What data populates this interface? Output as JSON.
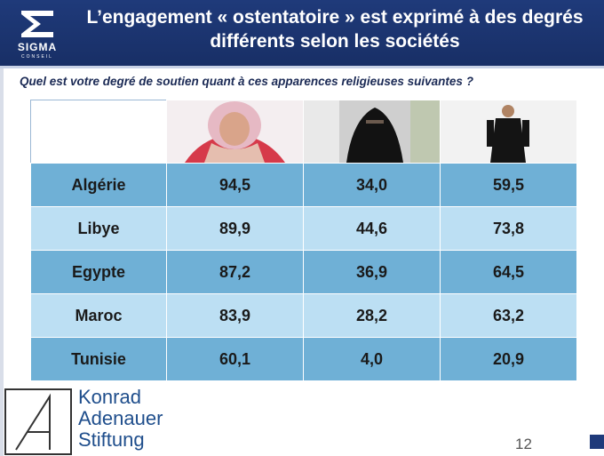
{
  "header": {
    "title": "L’engagement « ostentatoire » est exprimé à des degrés différents selon les sociétés",
    "logo_word": "SIGMA",
    "logo_sub": "CONSEIL",
    "colors": {
      "header_bg": "#1f3a7a",
      "row_dark": "#6fb0d6",
      "row_light": "#bcdff3"
    }
  },
  "question": "Quel est votre degré de soutien quant à ces apparences religieuses suivantes ?",
  "table": {
    "image_icons": [
      "hijab-woman-photo-icon",
      "niqab-woman-photo-icon",
      "qamis-man-photo-icon"
    ],
    "rows": [
      {
        "country": "Algérie",
        "values": [
          "94,5",
          "34,0",
          "59,5"
        ]
      },
      {
        "country": "Libye",
        "values": [
          "89,9",
          "44,6",
          "73,8"
        ]
      },
      {
        "country": "Egypte",
        "values": [
          "87,2",
          "36,9",
          "64,5"
        ]
      },
      {
        "country": "Maroc",
        "values": [
          "83,9",
          "28,2",
          "63,2"
        ]
      },
      {
        "country": "Tunisie",
        "values": [
          "60,1",
          "4,0",
          "20,9"
        ]
      }
    ]
  },
  "footer": {
    "kas_lines": [
      "Konrad",
      "Adenauer",
      "Stiftung"
    ],
    "page_number": "12"
  }
}
